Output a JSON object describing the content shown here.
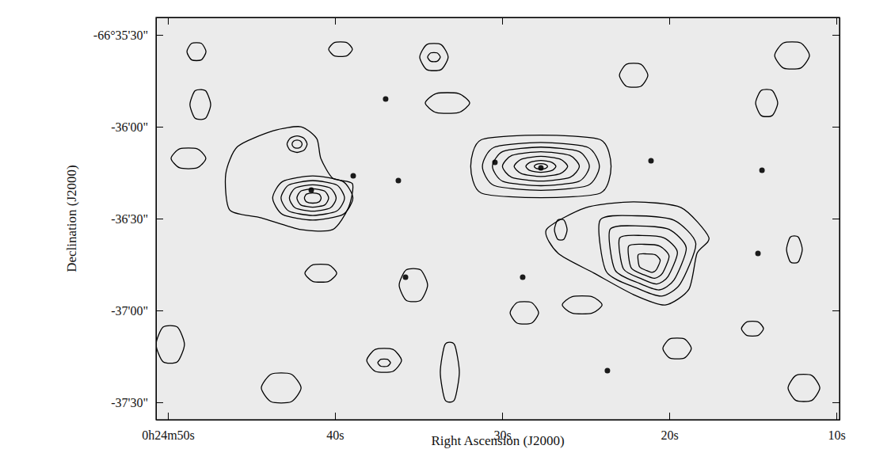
{
  "chart_data": {
    "type": "contour",
    "x_label": "Right Ascension (J2000)",
    "y_label": "Declination (J2000)",
    "xlim": [
      50.71,
      9.81
    ],
    "ylim": [
      -37.595,
      -35.405
    ],
    "xticks": [
      {
        "value": 50,
        "label": "0h24m50s"
      },
      {
        "value": 40,
        "label": "40s"
      },
      {
        "value": 30,
        "label": "30s"
      },
      {
        "value": 20,
        "label": "20s"
      },
      {
        "value": 10,
        "label": "10s"
      }
    ],
    "yticks": [
      {
        "value": -35.5,
        "label": "-66°35'30\""
      },
      {
        "value": -36,
        "label": "-36'00\""
      },
      {
        "value": -36.5,
        "label": "-36'30\""
      },
      {
        "value": -37,
        "label": "-37'00\""
      },
      {
        "value": -37.5,
        "label": "-37'30\""
      }
    ],
    "color": "#000000",
    "stars": {
      "x": [
        36.97,
        36.21,
        23.7,
        27.68,
        21.09,
        14.45,
        41.42,
        35.78,
        28.77,
        14.69,
        38.91,
        30.43
      ],
      "y": [
        -35.849,
        -36.293,
        -37.328,
        -36.224,
        -36.185,
        -36.237,
        -36.345,
        -36.819,
        -36.819,
        -36.69,
        -36.267,
        -36.194
      ]
    },
    "contours": [
      {
        "x": [
          31.88,
          31.25,
          27.68,
          24.11,
          23.48,
          24.11,
          27.68,
          31.25
        ],
        "y": [
          -36.216,
          -36.071,
          -36.046,
          -36.071,
          -36.216,
          -36.361,
          -36.386,
          -36.361
        ]
      },
      {
        "x": [
          31.18,
          30.48,
          27.68,
          24.88,
          24.18,
          24.88,
          27.68,
          30.48
        ],
        "y": [
          -36.216,
          -36.112,
          -36.086,
          -36.112,
          -36.216,
          -36.32,
          -36.346,
          -36.32
        ]
      },
      {
        "x": [
          30.58,
          29.94,
          27.68,
          25.42,
          24.78,
          25.42,
          27.68,
          29.94
        ],
        "y": [
          -36.216,
          -36.134,
          -36.111,
          -36.134,
          -36.216,
          -36.298,
          -36.321,
          -36.298
        ]
      },
      {
        "x": [
          29.98,
          29.41,
          27.68,
          25.95,
          25.38,
          25.95,
          27.68,
          29.41
        ],
        "y": [
          -36.216,
          -36.156,
          -36.136,
          -36.156,
          -36.216,
          -36.276,
          -36.296,
          -36.276
        ]
      },
      {
        "x": [
          29.28,
          28.83,
          27.68,
          26.53,
          26.08,
          26.53,
          27.68,
          28.83
        ],
        "y": [
          -36.216,
          -36.176,
          -36.161,
          -36.176,
          -36.216,
          -36.256,
          -36.271,
          -36.256
        ]
      },
      {
        "x": [
          28.58,
          28.32,
          27.68,
          27.04,
          26.78,
          27.04,
          27.68,
          28.32
        ],
        "y": [
          -36.216,
          -36.193,
          -36.184,
          -36.193,
          -36.216,
          -36.239,
          -36.248,
          -36.239
        ]
      },
      {
        "x": [
          28.08,
          27.96,
          27.68,
          27.4,
          27.28,
          27.4,
          27.68,
          27.96
        ],
        "y": [
          -36.216,
          -36.205,
          -36.201,
          -36.205,
          -36.216,
          -36.227,
          -36.231,
          -36.227
        ]
      },
      {
        "x": [
          27.35,
          24.98,
          22.13,
          19.29,
          17.63,
          18.34,
          18.82,
          20.24,
          22.13,
          24.5,
          26.64
        ],
        "y": [
          -36.56,
          -36.44,
          -36.409,
          -36.44,
          -36.603,
          -36.69,
          -36.884,
          -36.97,
          -36.914,
          -36.797,
          -36.69
        ]
      },
      {
        "x": [
          24.14,
          21.92,
          19.71,
          18.41,
          19.34,
          20.45,
          21.92,
          23.77
        ],
        "y": [
          -36.509,
          -36.485,
          -36.509,
          -36.636,
          -36.855,
          -36.922,
          -36.879,
          -36.788
        ]
      },
      {
        "x": [
          23.54,
          21.77,
          20.01,
          18.98,
          19.72,
          20.6,
          21.77,
          23.24
        ],
        "y": [
          -36.559,
          -36.54,
          -36.559,
          -36.66,
          -36.835,
          -36.888,
          -36.853,
          -36.781
        ]
      },
      {
        "x": [
          22.97,
          21.63,
          20.29,
          19.51,
          20.07,
          20.74,
          21.63,
          22.74
        ],
        "y": [
          -36.606,
          -36.592,
          -36.606,
          -36.683,
          -36.815,
          -36.856,
          -36.829,
          -36.774
        ]
      },
      {
        "x": [
          22.43,
          21.49,
          20.56,
          20.01,
          20.4,
          20.87,
          21.49,
          22.28
        ],
        "y": [
          -36.65,
          -36.64,
          -36.65,
          -36.704,
          -36.797,
          -36.825,
          -36.807,
          -36.768
        ]
      },
      {
        "x": [
          21.86,
          21.35,
          20.84,
          20.54,
          20.76,
          21.01,
          21.35,
          21.78
        ],
        "y": [
          -36.697,
          -36.692,
          -36.697,
          -36.727,
          -36.777,
          -36.793,
          -36.783,
          -36.762
        ]
      },
      {
        "x": [
          46.54,
          45.83,
          43.7,
          42.04,
          41.09,
          40.85,
          40.14,
          38.96,
          39.19,
          40.14,
          42.04,
          44.41,
          46.3
        ],
        "y": [
          -36.259,
          -36.108,
          -36.022,
          -36.0,
          -36.065,
          -36.172,
          -36.28,
          -36.31,
          -36.44,
          -36.56,
          -36.56,
          -36.496,
          -36.453
        ]
      },
      {
        "x": [
          43.73,
          43.13,
          41.33,
          39.53,
          38.93,
          39.53,
          41.33,
          43.13
        ],
        "y": [
          -36.388,
          -36.298,
          -36.268,
          -36.298,
          -36.388,
          -36.478,
          -36.508,
          -36.478
        ]
      },
      {
        "x": [
          43.23,
          42.76,
          41.33,
          39.9,
          39.43,
          39.9,
          41.33,
          42.76
        ],
        "y": [
          -36.388,
          -36.317,
          -36.293,
          -36.317,
          -36.388,
          -36.459,
          -36.483,
          -36.459
        ]
      },
      {
        "x": [
          42.73,
          42.38,
          41.33,
          40.28,
          39.93,
          40.28,
          41.33,
          42.38
        ],
        "y": [
          -36.388,
          -36.334,
          -36.316,
          -36.334,
          -36.388,
          -36.442,
          -36.46,
          -36.442
        ]
      },
      {
        "x": [
          42.28,
          42.04,
          41.33,
          40.62,
          40.38,
          40.62,
          41.33,
          42.04
        ],
        "y": [
          -36.388,
          -36.35,
          -36.338,
          -36.35,
          -36.388,
          -36.426,
          -36.438,
          -36.426
        ]
      },
      {
        "x": [
          41.83,
          41.71,
          41.33,
          40.95,
          40.83,
          40.95,
          41.33,
          41.71
        ],
        "y": [
          -36.388,
          -36.367,
          -36.36,
          -36.367,
          -36.388,
          -36.409,
          -36.416,
          -36.409
        ]
      },
      {
        "x": [
          42.87,
          42.69,
          42.27,
          41.85,
          41.67,
          41.85,
          42.27,
          42.69
        ],
        "y": [
          -36.095,
          -36.063,
          -36.05,
          -36.063,
          -36.095,
          -36.127,
          -36.14,
          -36.127
        ]
      },
      {
        "x": [
          42.57,
          42.48,
          42.27,
          42.06,
          41.97,
          42.06,
          42.27,
          42.48
        ],
        "y": [
          -36.095,
          -36.079,
          -36.073,
          -36.079,
          -36.095,
          -36.111,
          -36.117,
          -36.111
        ]
      },
      {
        "x": [
          48.86,
          48.58,
          48.0,
          47.72,
          48.0,
          48.58
        ],
        "y": [
          -35.591,
          -35.546,
          -35.546,
          -35.591,
          -35.636,
          -35.636
        ]
      },
      {
        "x": [
          40.38,
          40.03,
          39.31,
          38.96,
          39.31,
          40.03
        ],
        "y": [
          -35.578,
          -35.541,
          -35.541,
          -35.578,
          -35.615,
          -35.615
        ]
      },
      {
        "x": [
          34.93,
          34.51,
          33.65,
          33.23,
          33.65,
          34.51
        ],
        "y": [
          -35.621,
          -35.553,
          -35.553,
          -35.621,
          -35.689,
          -35.689
        ]
      },
      {
        "x": [
          34.46,
          34.27,
          33.89,
          33.7,
          33.89,
          34.27
        ],
        "y": [
          -35.621,
          -35.598,
          -35.598,
          -35.621,
          -35.644,
          -35.644
        ]
      },
      {
        "x": [
          48.68,
          48.37,
          47.75,
          47.44,
          47.75,
          48.37
        ],
        "y": [
          -35.879,
          -35.804,
          -35.804,
          -35.879,
          -35.954,
          -35.954
        ]
      },
      {
        "x": [
          22.98,
          22.56,
          21.7,
          21.28,
          21.7,
          22.56
        ],
        "y": [
          -35.72,
          -35.66,
          -35.66,
          -35.72,
          -35.78,
          -35.78
        ]
      },
      {
        "x": [
          14.83,
          14.5,
          13.84,
          13.51,
          13.84,
          14.5
        ],
        "y": [
          -35.871,
          -35.803,
          -35.803,
          -35.871,
          -35.939,
          -35.939
        ]
      },
      {
        "x": [
          13.69,
          13.17,
          12.13,
          11.61,
          12.13,
          13.17
        ],
        "y": [
          -35.612,
          -35.544,
          -35.544,
          -35.612,
          -35.68,
          -35.68
        ]
      },
      {
        "x": [
          34.6,
          33.94,
          32.61,
          31.94,
          32.61,
          33.94
        ],
        "y": [
          -35.871,
          -35.819,
          -35.819,
          -35.871,
          -35.923,
          -35.923
        ]
      },
      {
        "x": [
          49.81,
          49.29,
          48.25,
          47.73,
          48.25,
          49.29
        ],
        "y": [
          -36.172,
          -36.12,
          -36.12,
          -36.172,
          -36.224,
          -36.224
        ]
      },
      {
        "x": [
          36.16,
          35.74,
          34.88,
          34.46,
          34.88,
          35.74
        ],
        "y": [
          -36.862,
          -36.779,
          -36.779,
          -36.862,
          -36.945,
          -36.945
        ]
      },
      {
        "x": [
          41.8,
          41.33,
          40.38,
          39.9,
          40.38,
          41.33
        ],
        "y": [
          -36.797,
          -36.752,
          -36.752,
          -36.797,
          -36.842,
          -36.842
        ]
      },
      {
        "x": [
          44.41,
          43.82,
          42.62,
          42.03,
          42.62,
          43.82
        ],
        "y": [
          -37.422,
          -37.347,
          -37.347,
          -37.422,
          -37.497,
          -37.497
        ]
      },
      {
        "x": [
          38.1,
          37.58,
          36.54,
          36.02,
          36.54,
          37.58
        ],
        "y": [
          -37.272,
          -37.212,
          -37.212,
          -37.272,
          -37.332,
          -37.332
        ]
      },
      {
        "x": [
          37.44,
          37.25,
          36.87,
          36.68,
          36.87,
          37.25
        ],
        "y": [
          -37.285,
          -37.266,
          -37.266,
          -37.285,
          -37.304,
          -37.304
        ]
      },
      {
        "x": [
          33.7,
          33.42,
          32.85,
          32.56,
          32.85,
          33.42
        ],
        "y": [
          -37.336,
          -37.186,
          -37.186,
          -37.336,
          -37.486,
          -37.486
        ]
      },
      {
        "x": [
          29.52,
          29.1,
          28.24,
          27.82,
          28.24,
          29.1
        ],
        "y": [
          -37.013,
          -36.957,
          -36.957,
          -37.013,
          -37.069,
          -37.069
        ]
      },
      {
        "x": [
          26.87,
          26.68,
          26.3,
          26.11,
          26.3,
          26.68
        ],
        "y": [
          -36.56,
          -36.508,
          -36.508,
          -36.56,
          -36.612,
          -36.612
        ]
      },
      {
        "x": [
          12.98,
          12.75,
          12.28,
          12.04,
          12.28,
          12.75
        ],
        "y": [
          -36.668,
          -36.6,
          -36.6,
          -36.668,
          -36.736,
          -36.736
        ]
      },
      {
        "x": [
          20.38,
          19.96,
          19.1,
          18.68,
          19.1,
          19.96
        ],
        "y": [
          -37.207,
          -37.155,
          -37.155,
          -37.207,
          -37.259,
          -37.259
        ]
      },
      {
        "x": [
          15.68,
          15.35,
          14.69,
          14.36,
          14.69,
          15.35
        ],
        "y": [
          -37.099,
          -37.062,
          -37.062,
          -37.099,
          -37.136,
          -37.136
        ]
      },
      {
        "x": [
          50.71,
          50.29,
          49.43,
          49.01,
          49.43,
          50.29
        ],
        "y": [
          -37.185,
          -37.091,
          -37.091,
          -37.185,
          -37.279,
          -37.279
        ]
      },
      {
        "x": [
          12.89,
          12.42,
          11.47,
          10.99,
          11.47,
          12.42
        ],
        "y": [
          -37.422,
          -37.354,
          -37.354,
          -37.422,
          -37.49,
          -37.49
        ]
      },
      {
        "x": [
          26.4,
          25.81,
          24.62,
          24.02,
          24.62,
          25.81
        ],
        "y": [
          -36.97,
          -36.925,
          -36.925,
          -36.97,
          -37.015,
          -37.015
        ]
      }
    ]
  }
}
